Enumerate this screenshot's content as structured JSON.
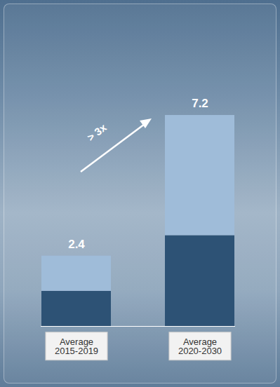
{
  "chart_data": {
    "type": "bar",
    "stacked": true,
    "categories": [
      "Average 2015-2019",
      "Average 2020-2030"
    ],
    "series": [
      {
        "color": "#2d5275",
        "values": [
          1.2,
          3.1
        ]
      },
      {
        "color": "#9fbcd9",
        "values": [
          1.2,
          4.1
        ]
      }
    ],
    "totals": [
      2.4,
      7.2
    ],
    "annotation": "> 3x",
    "ylim": [
      0,
      10
    ],
    "yticks": [],
    "tick_labels": "x",
    "grid": false,
    "data_labels": false
  }
}
